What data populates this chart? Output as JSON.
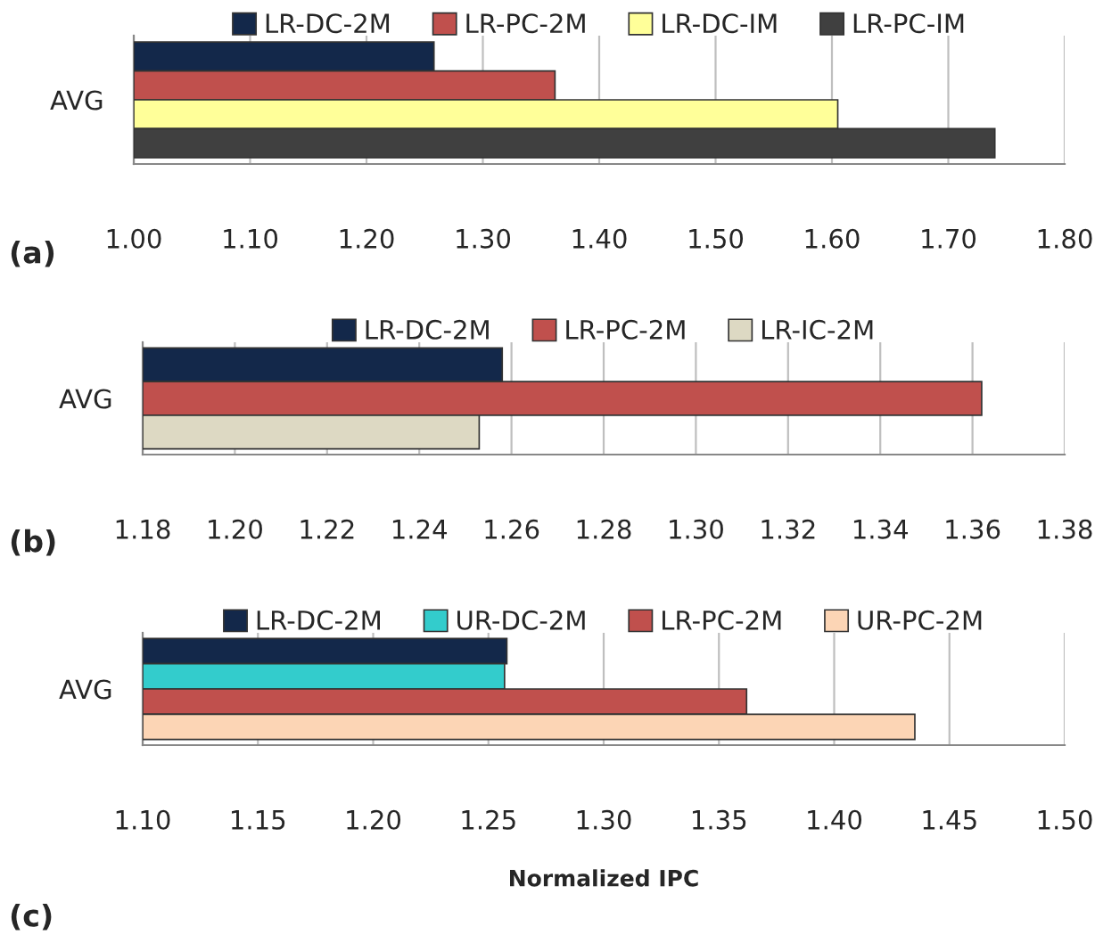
{
  "chart_data": [
    {
      "type": "bar",
      "orientation": "horizontal",
      "categories": [
        "AVG"
      ],
      "series": [
        {
          "name": "LR-DC-2M",
          "color": "#13284a",
          "values": [
            1.258
          ]
        },
        {
          "name": "LR-PC-2M",
          "color": "#c0504d",
          "values": [
            1.362
          ]
        },
        {
          "name": "LR-DC-IM",
          "color": "#ffff99",
          "values": [
            1.605
          ]
        },
        {
          "name": "LR-PC-IM",
          "color": "#404040",
          "values": [
            1.74
          ]
        }
      ],
      "xlim": [
        1.0,
        1.8
      ],
      "xticks": [
        {
          "value": 1.0,
          "label": "1.00"
        },
        {
          "value": 1.1,
          "label": "1.10"
        },
        {
          "value": 1.2,
          "label": "1.20"
        },
        {
          "value": 1.3,
          "label": "1.30"
        },
        {
          "value": 1.4,
          "label": "1.40"
        },
        {
          "value": 1.5,
          "label": "1.50"
        },
        {
          "value": 1.6,
          "label": "1.60"
        },
        {
          "value": 1.7,
          "label": "1.70"
        },
        {
          "value": 1.8,
          "label": "1.80"
        }
      ],
      "grid": "x",
      "legend": "top",
      "annotations": [
        "(a)"
      ]
    },
    {
      "type": "bar",
      "orientation": "horizontal",
      "categories": [
        "AVG"
      ],
      "series": [
        {
          "name": "LR-DC-2M",
          "color": "#13284a",
          "values": [
            1.258
          ]
        },
        {
          "name": "LR-PC-2M",
          "color": "#c0504d",
          "values": [
            1.362
          ]
        },
        {
          "name": "LR-IC-2M",
          "color": "#ddd9c3",
          "values": [
            1.253
          ]
        }
      ],
      "xlim": [
        1.18,
        1.38
      ],
      "xticks": [
        {
          "value": 1.18,
          "label": "1.18"
        },
        {
          "value": 1.2,
          "label": "1.20"
        },
        {
          "value": 1.22,
          "label": "1.22"
        },
        {
          "value": 1.24,
          "label": "1.24"
        },
        {
          "value": 1.26,
          "label": "1.26"
        },
        {
          "value": 1.28,
          "label": "1.28"
        },
        {
          "value": 1.3,
          "label": "1.30"
        },
        {
          "value": 1.32,
          "label": "1.32"
        },
        {
          "value": 1.34,
          "label": "1.34"
        },
        {
          "value": 1.36,
          "label": "1.36"
        },
        {
          "value": 1.38,
          "label": "1.38"
        }
      ],
      "grid": "x",
      "legend": "top",
      "annotations": [
        "(b)"
      ]
    },
    {
      "type": "bar",
      "orientation": "horizontal",
      "categories": [
        "AVG"
      ],
      "series": [
        {
          "name": "LR-DC-2M",
          "color": "#13284a",
          "values": [
            1.258
          ]
        },
        {
          "name": "UR-DC-2M",
          "color": "#33cccc",
          "values": [
            1.257
          ]
        },
        {
          "name": "LR-PC-2M",
          "color": "#c0504d",
          "values": [
            1.362
          ]
        },
        {
          "name": "UR-PC-2M",
          "color": "#fcd5b5",
          "values": [
            1.435
          ]
        }
      ],
      "xlim": [
        1.1,
        1.5
      ],
      "xticks": [
        {
          "value": 1.1,
          "label": "1.10"
        },
        {
          "value": 1.15,
          "label": "1.15"
        },
        {
          "value": 1.2,
          "label": "1.20"
        },
        {
          "value": 1.25,
          "label": "1.25"
        },
        {
          "value": 1.3,
          "label": "1.30"
        },
        {
          "value": 1.35,
          "label": "1.35"
        },
        {
          "value": 1.4,
          "label": "1.40"
        },
        {
          "value": 1.45,
          "label": "1.45"
        },
        {
          "value": 1.5,
          "label": "1.50"
        }
      ],
      "xlabel": "Normalized IPC",
      "grid": "x",
      "legend": "top",
      "annotations": [
        "(c)"
      ]
    }
  ]
}
